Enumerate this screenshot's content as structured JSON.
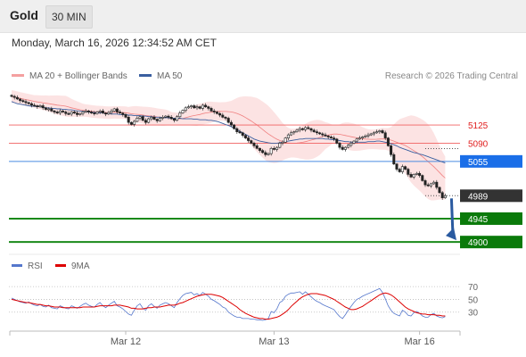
{
  "header": {
    "symbol": "Gold",
    "timeframe": "30 MIN",
    "datetime": "Monday, March 16, 2026 12:34:52 AM CET"
  },
  "legend": {
    "bb": {
      "label": "MA 20 + Bollinger Bands",
      "color": "#f08080"
    },
    "ma50": {
      "label": "MA 50",
      "color": "#3a5fa0"
    },
    "rsi": {
      "label": "RSI",
      "color": "#5577cc"
    },
    "ma9": {
      "label": "9MA",
      "color": "#dd0000"
    }
  },
  "credit": "Research © 2026 Trading Central",
  "chart_data": {
    "type": "candlestick",
    "ylim": [
      4878,
      5192
    ],
    "x_ticks": [
      {
        "label": "Mar 12",
        "index": 40
      },
      {
        "label": "Mar 13",
        "index": 92
      },
      {
        "label": "Mar 16",
        "index": 143
      }
    ],
    "levels": [
      {
        "value": 5125,
        "label": "5125",
        "kind": "resistance"
      },
      {
        "value": 5090,
        "label": "5090",
        "kind": "resistance"
      },
      {
        "value": 5055,
        "label": "5055",
        "kind": "pivot"
      },
      {
        "value": 4989,
        "label": "4989",
        "kind": "last"
      },
      {
        "value": 4945,
        "label": "4945",
        "kind": "support"
      },
      {
        "value": 4900,
        "label": "4900",
        "kind": "support"
      }
    ],
    "closes": [
      5180,
      5178,
      5175,
      5172,
      5170,
      5168,
      5166,
      5163,
      5162,
      5160,
      5162,
      5158,
      5155,
      5156,
      5152,
      5150,
      5148,
      5152,
      5150,
      5147,
      5146,
      5150,
      5148,
      5145,
      5147,
      5150,
      5152,
      5150,
      5148,
      5147,
      5150,
      5152,
      5148,
      5146,
      5149,
      5152,
      5156,
      5150,
      5148,
      5145,
      5140,
      5130,
      5126,
      5132,
      5138,
      5141,
      5134,
      5130,
      5137,
      5140,
      5136,
      5133,
      5138,
      5140,
      5142,
      5140,
      5137,
      5134,
      5141,
      5148,
      5153,
      5158,
      5160,
      5162,
      5158,
      5160,
      5157,
      5163,
      5160,
      5157,
      5152,
      5150,
      5147,
      5144,
      5140,
      5138,
      5130,
      5125,
      5118,
      5112,
      5110,
      5105,
      5100,
      5095,
      5090,
      5085,
      5080,
      5076,
      5072,
      5068,
      5070,
      5080,
      5078,
      5082,
      5090,
      5092,
      5100,
      5106,
      5110,
      5112,
      5115,
      5118,
      5116,
      5120,
      5118,
      5115,
      5112,
      5110,
      5108,
      5106,
      5104,
      5102,
      5100,
      5098,
      5090,
      5082,
      5078,
      5082,
      5086,
      5090,
      5094,
      5098,
      5100,
      5102,
      5104,
      5106,
      5108,
      5110,
      5112,
      5114,
      5110,
      5100,
      5085,
      5068,
      5050,
      5040,
      5035,
      5045,
      5040,
      5030,
      5025,
      5030,
      5032,
      5028,
      5018,
      5010,
      5008,
      5012,
      5015,
      5005,
      4995,
      4985,
      4989
    ],
    "ma50": [
      5170,
      5168,
      5166,
      5165,
      5164,
      5163,
      5162,
      5161,
      5161,
      5160,
      5160,
      5159,
      5158,
      5158,
      5157,
      5157,
      5156,
      5156,
      5155,
      5155,
      5154,
      5154,
      5153,
      5152,
      5152,
      5151,
      5151,
      5150,
      5150,
      5149,
      5149,
      5148,
      5148,
      5147,
      5147,
      5146,
      5146,
      5146,
      5145,
      5145,
      5145,
      5144,
      5144,
      5143,
      5143,
      5143,
      5142,
      5142,
      5141,
      5141,
      5140,
      5140,
      5140,
      5139,
      5139,
      5139,
      5138,
      5138,
      5138,
      5138,
      5137,
      5137,
      5137,
      5137,
      5136,
      5136,
      5135,
      5135,
      5135,
      5134,
      5134,
      5133,
      5132,
      5130,
      5128,
      5126,
      5124,
      5122,
      5119,
      5116,
      5113,
      5110,
      5107,
      5104,
      5101,
      5098,
      5096,
      5094,
      5093,
      5092,
      5091,
      5090,
      5090,
      5090,
      5091,
      5092,
      5093,
      5094,
      5095,
      5096,
      5097,
      5098,
      5098,
      5099,
      5099,
      5099,
      5099,
      5099,
      5099,
      5099,
      5098,
      5098,
      5097,
      5097,
      5096,
      5095,
      5094,
      5093,
      5093,
      5092,
      5092,
      5092,
      5092,
      5092,
      5092,
      5093,
      5093,
      5093,
      5094,
      5094,
      5093,
      5092,
      5091,
      5089,
      5087,
      5085,
      5082,
      5080,
      5078,
      5076,
      5074,
      5072,
      5071,
      5069,
      5068,
      5066,
      5064,
      5062,
      5060,
      5058,
      5056,
      5054,
      5052
    ],
    "rsi": [
      52,
      50,
      48,
      46,
      45,
      44,
      46,
      43,
      41,
      40,
      42,
      39,
      38,
      41,
      37,
      36,
      35,
      40,
      38,
      36,
      35,
      40,
      38,
      36,
      39,
      42,
      44,
      41,
      39,
      38,
      42,
      45,
      40,
      37,
      41,
      44,
      47,
      40,
      38,
      35,
      31,
      27,
      25,
      33,
      40,
      43,
      36,
      33,
      40,
      43,
      39,
      36,
      41,
      43,
      45,
      43,
      40,
      37,
      45,
      51,
      56,
      59,
      60,
      61,
      57,
      59,
      56,
      61,
      58,
      55,
      50,
      48,
      45,
      42,
      38,
      36,
      30,
      27,
      24,
      22,
      22,
      20,
      20,
      20,
      19,
      19,
      18,
      18,
      17,
      18,
      20,
      31,
      29,
      35,
      45,
      48,
      55,
      58,
      60,
      60,
      61,
      62,
      58,
      62,
      58,
      54,
      50,
      47,
      45,
      42,
      40,
      38,
      36,
      34,
      28,
      23,
      20,
      26,
      33,
      39,
      45,
      50,
      52,
      55,
      57,
      59,
      61,
      63,
      65,
      67,
      61,
      51,
      40,
      33,
      28,
      26,
      24,
      33,
      30,
      25,
      24,
      29,
      31,
      28,
      24,
      22,
      22,
      26,
      28,
      24,
      22,
      21,
      23
    ],
    "ma9": [
      50,
      49,
      48,
      47,
      46,
      45,
      45,
      44,
      43,
      42,
      42,
      41,
      40,
      40,
      39,
      38,
      38,
      38,
      37,
      37,
      37,
      37,
      37,
      37,
      37,
      38,
      38,
      38,
      38,
      38,
      39,
      40,
      40,
      40,
      40,
      40,
      41,
      41,
      41,
      40,
      39,
      38,
      36,
      36,
      35,
      35,
      35,
      36,
      37,
      37,
      38,
      38,
      38,
      39,
      40,
      41,
      41,
      41,
      42,
      44,
      45,
      47,
      49,
      51,
      53,
      55,
      56,
      57,
      58,
      58,
      58,
      57,
      56,
      55,
      53,
      50,
      47,
      44,
      41,
      38,
      34,
      31,
      28,
      26,
      24,
      22,
      21,
      20,
      20,
      19,
      19,
      20,
      21,
      22,
      24,
      27,
      30,
      34,
      39,
      43,
      47,
      51,
      54,
      56,
      58,
      59,
      59,
      59,
      58,
      57,
      56,
      54,
      52,
      50,
      47,
      44,
      41,
      38,
      36,
      34,
      34,
      35,
      37,
      39,
      42,
      45,
      48,
      51,
      54,
      57,
      59,
      60,
      59,
      57,
      54,
      50,
      46,
      42,
      38,
      35,
      33,
      31,
      29,
      28,
      27,
      27,
      26,
      26,
      26,
      25,
      25,
      24,
      24
    ],
    "rsi_ylim": [
      10,
      80
    ],
    "rsi_ticks": [
      70,
      50,
      30
    ]
  }
}
